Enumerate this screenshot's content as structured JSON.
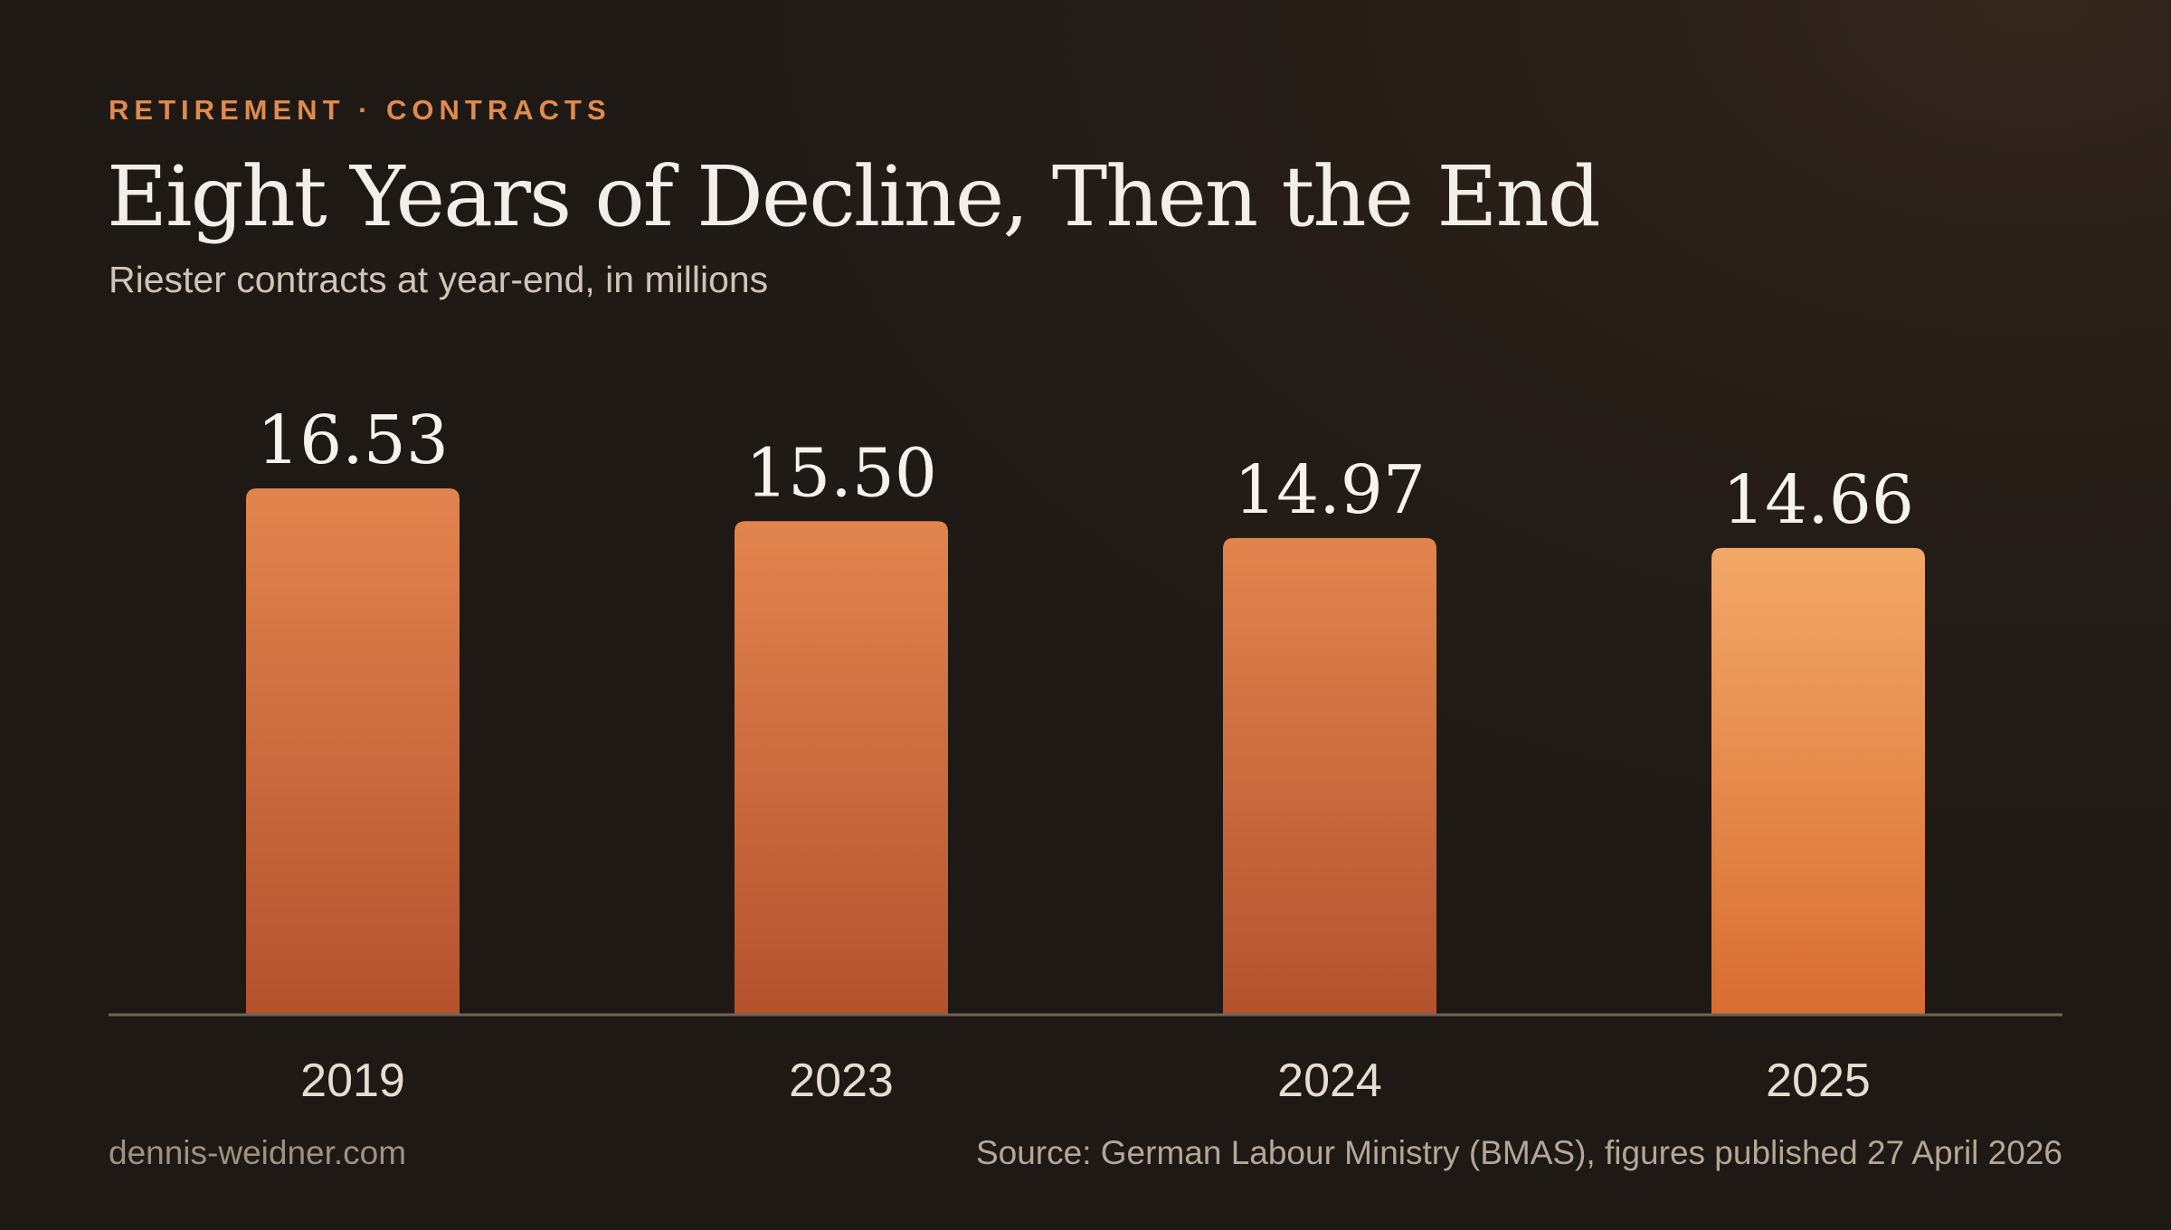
{
  "header": {
    "kicker": "RETIREMENT · CONTRACTS",
    "title": "Eight Years of Decline, Then the End",
    "subtitle": "Riester contracts at year-end, in millions"
  },
  "footer": {
    "site": "dennis-weidner.com",
    "source": "Source: German Labour Ministry (BMAS), figures published 27 April 2026"
  },
  "colors": {
    "background": "#1e1915",
    "accent": "#e08a4f",
    "bar_top": "#e2844e",
    "bar_bottom": "#b4522e",
    "highlight_top": "#f2a867",
    "highlight_bottom": "#d86d30",
    "axis": "#6e6458"
  },
  "chart_data": {
    "type": "bar",
    "categories": [
      "2019",
      "2023",
      "2024",
      "2025"
    ],
    "values": [
      16.53,
      15.5,
      14.97,
      14.66
    ],
    "value_labels": [
      "16.53",
      "15.50",
      "14.97",
      "14.66"
    ],
    "highlight_category": "2025",
    "title": "Eight Years of Decline, Then the End",
    "subtitle": "Riester contracts at year-end, in millions",
    "xlabel": "",
    "ylabel": "",
    "ylim": [
      0,
      16.53
    ],
    "grid": false,
    "legend": "none"
  }
}
